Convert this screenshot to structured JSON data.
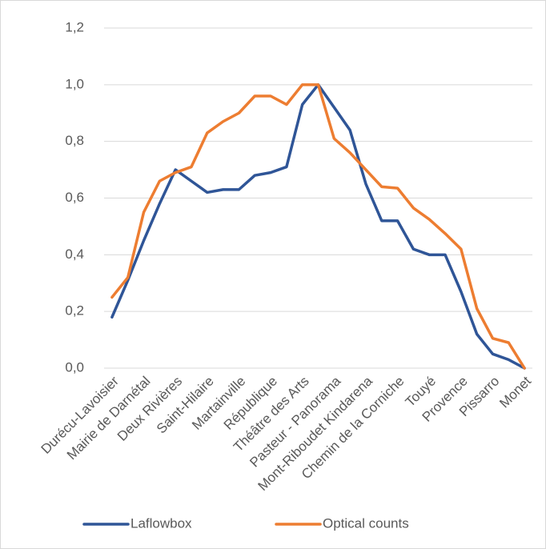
{
  "chart_data": {
    "type": "line",
    "categories": [
      "Durécu-Lavoisier",
      null,
      "Mairie de Darnétal",
      null,
      "Deux Rivières",
      null,
      "Saint-Hilaire",
      null,
      "Martainville",
      null,
      "République",
      null,
      "Théâtre des Arts",
      null,
      "Pasteur - Panorama",
      null,
      "Mont-Riboudet Kindarena",
      null,
      "Chemin de la Corniche",
      null,
      "Touyé",
      null,
      "Provence",
      null,
      "Pissarro",
      null,
      "Monet"
    ],
    "series": [
      {
        "name": "Laflowbox",
        "color": "#2f5597",
        "values": [
          0.18,
          0.31,
          0.45,
          0.58,
          0.7,
          0.66,
          0.62,
          0.63,
          0.63,
          0.68,
          0.69,
          0.71,
          0.93,
          1.0,
          0.92,
          0.84,
          0.65,
          0.52,
          0.52,
          0.42,
          0.4,
          0.4,
          0.27,
          0.12,
          0.05,
          0.03,
          0.0
        ]
      },
      {
        "name": "Optical counts",
        "color": "#ed7d31",
        "values": [
          0.25,
          0.32,
          0.55,
          0.66,
          0.69,
          0.71,
          0.83,
          0.87,
          0.9,
          0.96,
          0.96,
          0.93,
          1.0,
          1.0,
          0.81,
          0.76,
          0.7,
          0.64,
          0.635,
          0.565,
          0.525,
          0.475,
          0.42,
          0.21,
          0.105,
          0.09,
          0.0
        ]
      }
    ],
    "ylim": [
      0,
      1.2
    ],
    "yticks": [
      {
        "value": 0,
        "label": "0,0"
      },
      {
        "value": 0.2,
        "label": "0,2"
      },
      {
        "value": 0.4,
        "label": "0,4"
      },
      {
        "value": 0.6,
        "label": "0,6"
      },
      {
        "value": 0.8,
        "label": "0,8"
      },
      {
        "value": 1.0,
        "label": "1,0"
      },
      {
        "value": 1.2,
        "label": "1,2"
      }
    ],
    "grid": true,
    "legend": "bottom"
  }
}
